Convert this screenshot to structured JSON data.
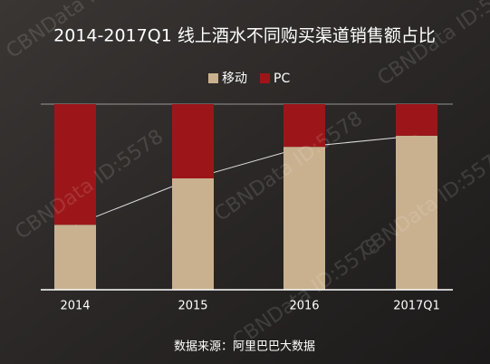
{
  "chart_data": {
    "type": "stacked_bar",
    "title": "2014-2017Q1 线上酒水不同购买渠道销售额占比",
    "categories": [
      "2014",
      "2015",
      "2016",
      "2017Q1"
    ],
    "series": [
      {
        "name": "移动",
        "color": "#c9b18f",
        "values": [
          35,
          60,
          77,
          83
        ]
      },
      {
        "name": "PC",
        "color": "#9c1619",
        "values": [
          65,
          40,
          23,
          17
        ]
      }
    ],
    "ylim": [
      0,
      100
    ],
    "source": "数据来源：阿里巴巴大数据",
    "watermark": "CBNData ID:5578"
  }
}
